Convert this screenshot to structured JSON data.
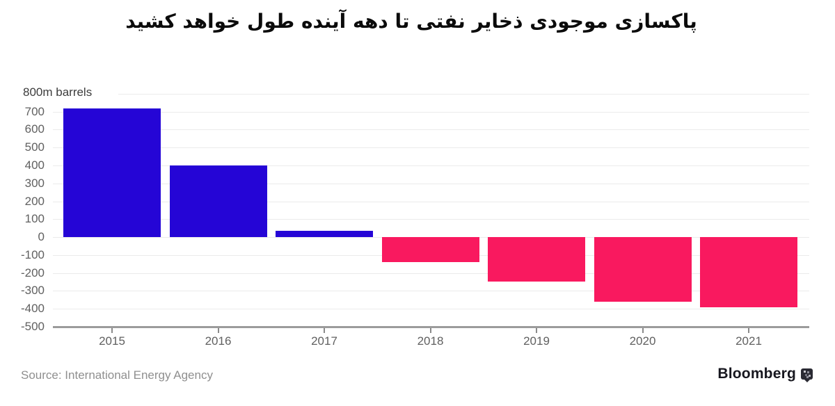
{
  "title": "پاکسازی موجودی ذخایر نفتی تا دهه آینده طول خواهد کشید",
  "chart_data": {
    "type": "bar",
    "categories": [
      "2015",
      "2016",
      "2017",
      "2018",
      "2019",
      "2020",
      "2021"
    ],
    "values": [
      720,
      400,
      35,
      -140,
      -250,
      -360,
      -390
    ],
    "unit_label": "800m barrels",
    "ylabel": "",
    "xlabel": "",
    "ylim": [
      -500,
      800
    ],
    "ytick_step": 100,
    "yticks": [
      700,
      600,
      500,
      400,
      300,
      200,
      100,
      0,
      -100,
      -200,
      -300,
      -400,
      -500
    ],
    "grid": true,
    "legend": false,
    "positive_color": "#2505d6",
    "negative_color": "#f9195f",
    "grid_color": "#ebebeb",
    "axis_color": "#9b9b9b"
  },
  "footer": {
    "source": "Source: International Energy Agency",
    "brand": "Bloomberg",
    "brand_mark": "bloomberg-pixel-mark"
  }
}
